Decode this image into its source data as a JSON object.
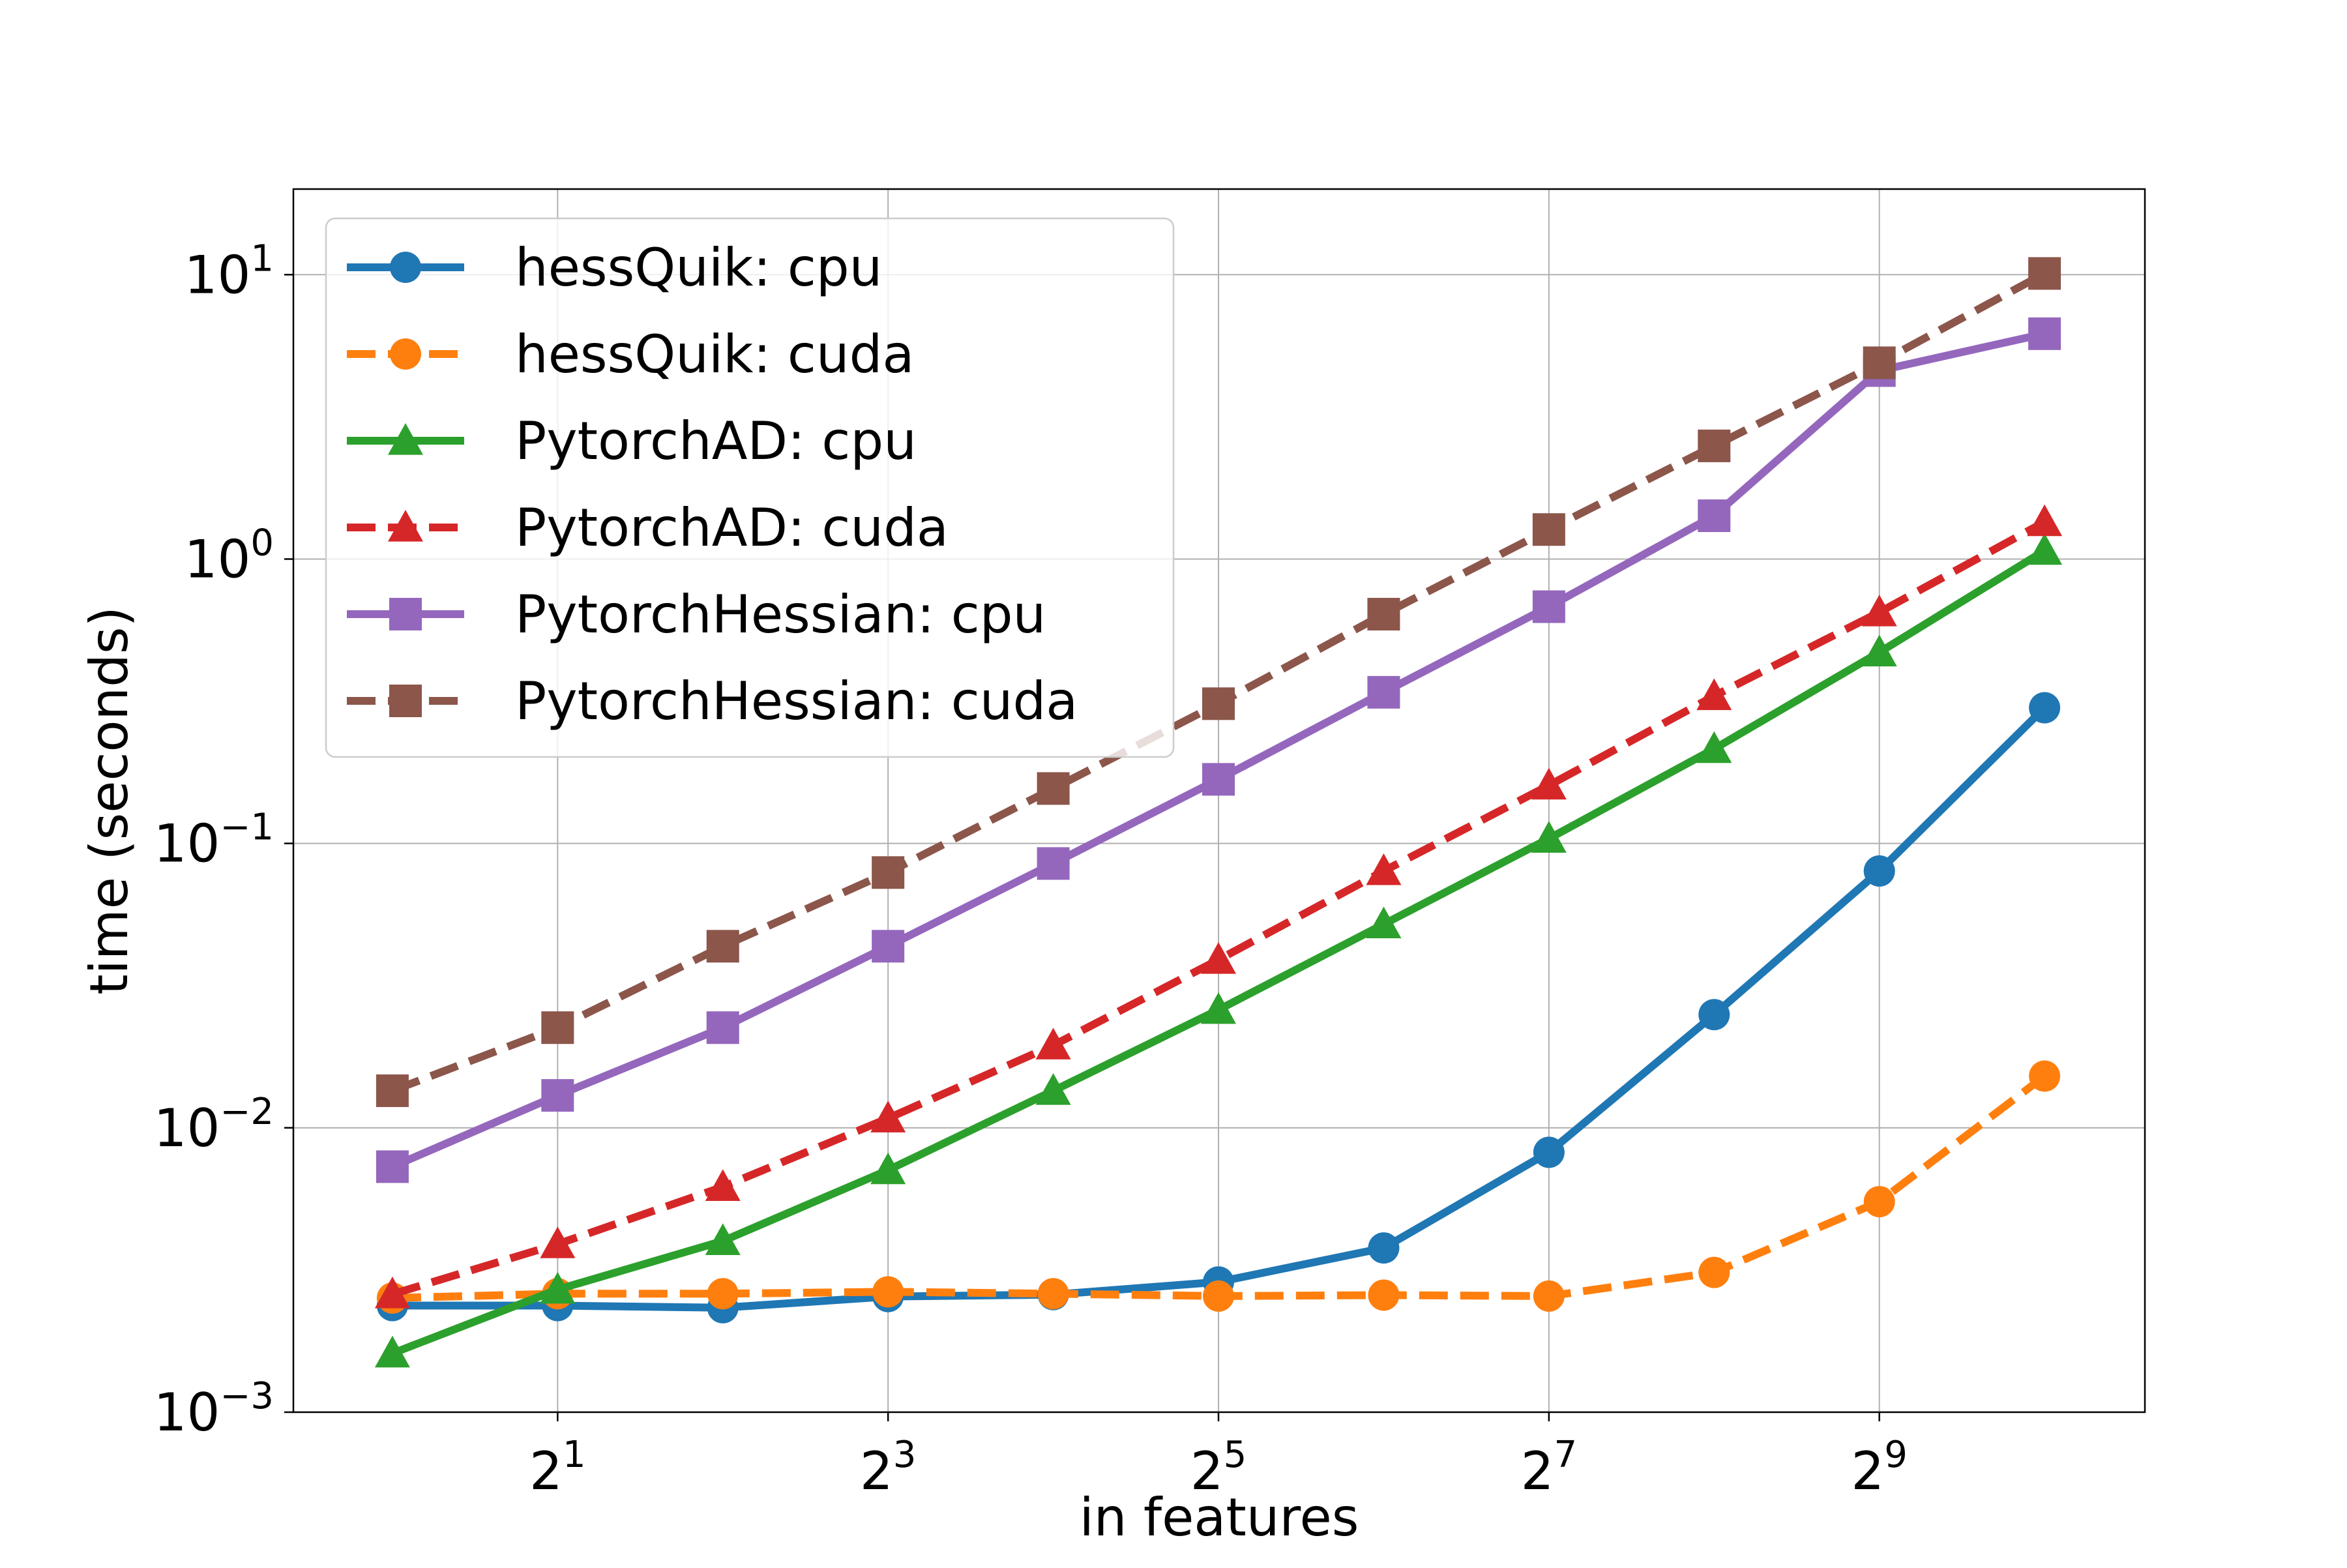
{
  "chart_data": {
    "type": "line",
    "title": "",
    "xlabel": "in features",
    "ylabel": "time (seconds)",
    "xscale": "log2",
    "yscale": "log10",
    "x": [
      1,
      2,
      4,
      8,
      16,
      32,
      64,
      128,
      256,
      512,
      1024
    ],
    "xlim": [
      0.66,
      1560
    ],
    "ylim": [
      0.001,
      20
    ],
    "x_ticks": [
      {
        "value": 2,
        "base": "2",
        "exp": "1"
      },
      {
        "value": 8,
        "base": "2",
        "exp": "3"
      },
      {
        "value": 32,
        "base": "2",
        "exp": "5"
      },
      {
        "value": 128,
        "base": "2",
        "exp": "7"
      },
      {
        "value": 512,
        "base": "2",
        "exp": "9"
      }
    ],
    "y_ticks": [
      {
        "value": 0.001,
        "base": "10",
        "exp": "−3"
      },
      {
        "value": 0.01,
        "base": "10",
        "exp": "−2"
      },
      {
        "value": 0.1,
        "base": "10",
        "exp": "−1"
      },
      {
        "value": 1,
        "base": "10",
        "exp": "0"
      },
      {
        "value": 10,
        "base": "10",
        "exp": "1"
      }
    ],
    "grid": true,
    "legend_position": "top-left",
    "series": [
      {
        "name": "hessQuik: cpu",
        "color": "#1f77b4",
        "marker": "circle",
        "dash": "solid",
        "values": [
          0.00237,
          0.00237,
          0.00233,
          0.00255,
          0.00259,
          0.00287,
          0.00378,
          0.0082,
          0.025,
          0.08,
          0.3
        ]
      },
      {
        "name": "hessQuik: cuda",
        "color": "#ff7f0e",
        "marker": "circle",
        "dash": "dashed",
        "values": [
          0.00252,
          0.00261,
          0.00261,
          0.00265,
          0.00261,
          0.00256,
          0.00258,
          0.00256,
          0.0031,
          0.0055,
          0.0152
        ]
      },
      {
        "name": "PytorchAD: cpu",
        "color": "#2ca02c",
        "marker": "triangle",
        "dash": "solid",
        "values": [
          0.00161,
          0.0027,
          0.004,
          0.0071,
          0.0135,
          0.026,
          0.052,
          0.104,
          0.215,
          0.47,
          1.07
        ]
      },
      {
        "name": "PytorchAD: cuda",
        "color": "#d62728",
        "marker": "triangle",
        "dash": "dashed",
        "values": [
          0.0026,
          0.0039,
          0.0062,
          0.0108,
          0.0195,
          0.039,
          0.08,
          0.16,
          0.33,
          0.65,
          1.35
        ]
      },
      {
        "name": "PytorchHessian: cpu",
        "color": "#9467bd",
        "marker": "square",
        "dash": "solid",
        "values": [
          0.0073,
          0.013,
          0.0225,
          0.0435,
          0.085,
          0.168,
          0.34,
          0.68,
          1.42,
          4.6,
          6.2
        ]
      },
      {
        "name": "PytorchHessian: cuda",
        "color": "#8c564b",
        "marker": "square",
        "dash": "dashed",
        "values": [
          0.0135,
          0.0225,
          0.0435,
          0.079,
          0.156,
          0.31,
          0.64,
          1.27,
          2.5,
          4.9,
          10.1
        ]
      }
    ]
  }
}
